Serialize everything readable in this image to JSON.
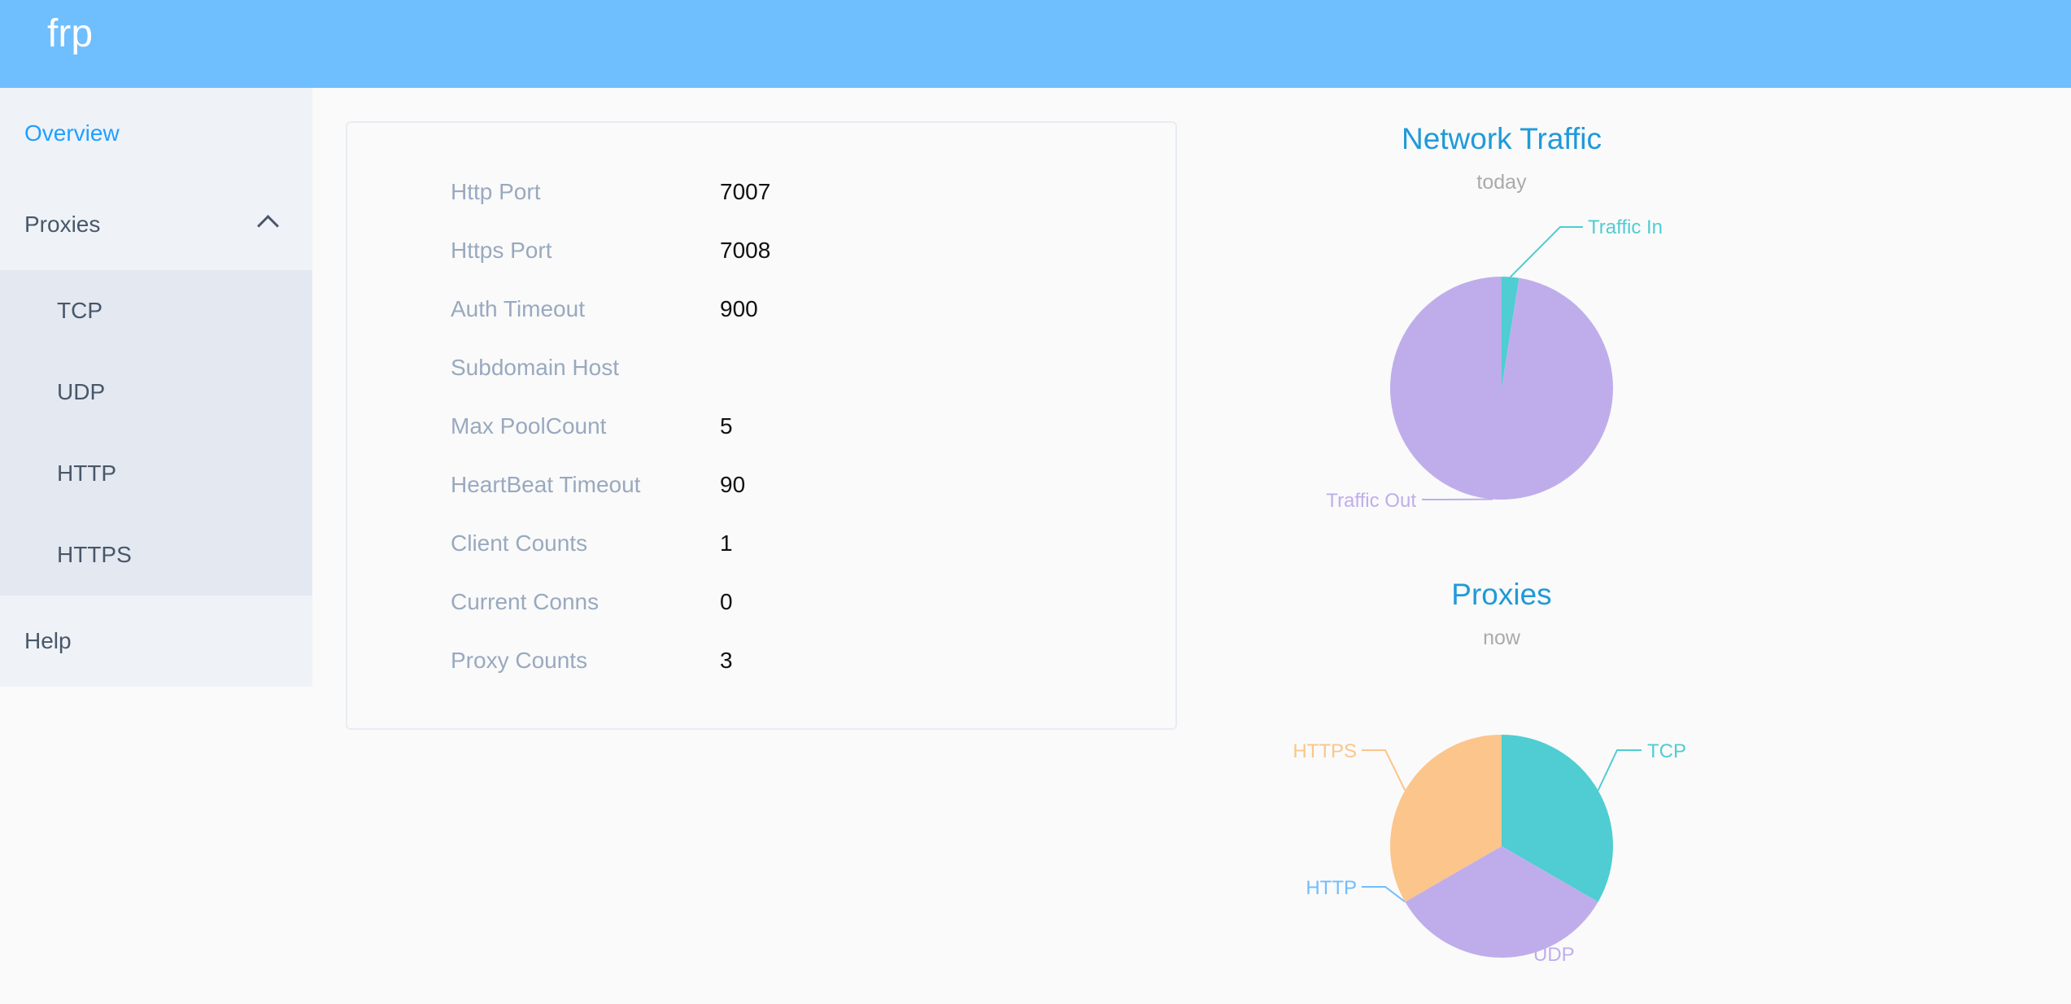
{
  "header": {
    "brand": "frp",
    "color": "#6fbefe"
  },
  "sidebar": {
    "items": [
      {
        "label": "Overview",
        "active": true
      },
      {
        "label": "Proxies",
        "expanded": true,
        "icon": "chevron-up-icon",
        "children": [
          {
            "label": "TCP"
          },
          {
            "label": "UDP"
          },
          {
            "label": "HTTP"
          },
          {
            "label": "HTTPS"
          }
        ]
      },
      {
        "label": "Help"
      }
    ]
  },
  "info": [
    {
      "label": "Http Port",
      "value": "7007"
    },
    {
      "label": "Https Port",
      "value": "7008"
    },
    {
      "label": "Auth Timeout",
      "value": "900"
    },
    {
      "label": "Subdomain Host",
      "value": ""
    },
    {
      "label": "Max PoolCount",
      "value": "5"
    },
    {
      "label": "HeartBeat Timeout",
      "value": "90"
    },
    {
      "label": "Client Counts",
      "value": "1"
    },
    {
      "label": "Current Conns",
      "value": "0"
    },
    {
      "label": "Proxy Counts",
      "value": "3"
    }
  ],
  "chart_data": [
    {
      "type": "pie",
      "title": "Network Traffic",
      "subtitle": "today",
      "categories": [
        "Traffic In",
        "Traffic Out"
      ],
      "values": [
        2.5,
        97.5
      ],
      "colors": [
        "#4fcdd2",
        "#bfadeb"
      ]
    },
    {
      "type": "pie",
      "title": "Proxies",
      "subtitle": "now",
      "categories": [
        "TCP",
        "UDP",
        "HTTP",
        "HTTPS"
      ],
      "values": [
        1,
        1,
        0,
        1
      ],
      "colors": [
        "#4fcdd2",
        "#bfadeb",
        "#6fbefe",
        "#fbc58b"
      ]
    }
  ]
}
